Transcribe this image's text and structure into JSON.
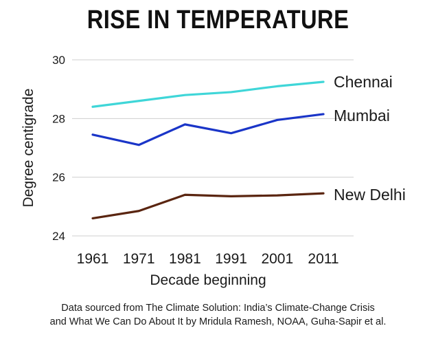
{
  "chart_data": {
    "type": "line",
    "title": "RISE IN TEMPERATURE",
    "xlabel": "Decade beginning",
    "ylabel": "Degree centigrade",
    "x": [
      "1961",
      "1971",
      "1981",
      "1991",
      "2001",
      "2011"
    ],
    "yticks": [
      24,
      26,
      28,
      30
    ],
    "ylim": [
      24,
      30
    ],
    "grid": "horizontal",
    "legend": "inline labels at right end of lines",
    "series": [
      {
        "name": "Chennai",
        "color": "#3fd6d8",
        "values": [
          28.4,
          28.6,
          28.8,
          28.9,
          29.1,
          29.25
        ]
      },
      {
        "name": "Mumbai",
        "color": "#1a35c8",
        "values": [
          27.45,
          27.1,
          27.8,
          27.5,
          27.95,
          28.15
        ]
      },
      {
        "name": "New Delhi",
        "color": "#5a2510",
        "values": [
          24.6,
          24.85,
          25.4,
          25.35,
          25.38,
          25.45
        ]
      }
    ]
  },
  "footer": {
    "line1": "Data sourced from The Climate Solution: India’s Climate-Change Crisis",
    "line2": "and What We Can Do About It by Mridula Ramesh, NOAA, Guha-Sapir et al."
  }
}
